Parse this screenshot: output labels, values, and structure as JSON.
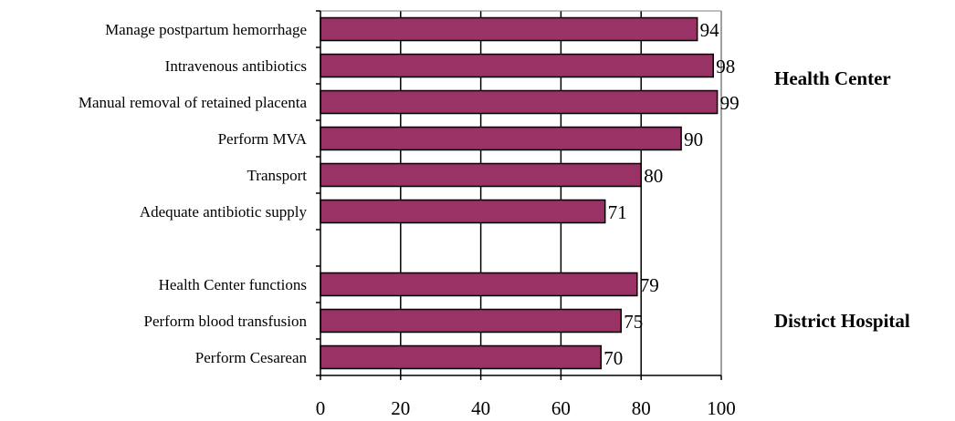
{
  "chart_data": {
    "type": "bar",
    "orientation": "horizontal",
    "categories": [
      "Manage postpartum hemorrhage",
      "Intravenous antibiotics",
      "Manual removal of retained placenta",
      "Perform MVA",
      "Transport",
      "Adequate antibiotic supply",
      "",
      "Health Center functions",
      "Perform blood transfusion",
      "Perform Cesarean"
    ],
    "values": [
      94,
      98,
      99,
      90,
      80,
      71,
      null,
      79,
      75,
      70
    ],
    "data_labels": [
      "94",
      "98",
      "99",
      "90",
      "80",
      "71",
      "",
      "79",
      "75",
      "70"
    ],
    "xlim": [
      0,
      100
    ],
    "x_ticks": [
      0,
      20,
      40,
      60,
      80,
      100
    ],
    "x_tick_labels": [
      "0",
      "20",
      "40",
      "60",
      "80",
      "100"
    ],
    "groups": [
      {
        "label": "Health Center",
        "categories": [
          "Manage postpartum hemorrhage",
          "Intravenous antibiotics",
          "Manual removal of retained placenta",
          "Perform MVA",
          "Transport",
          "Adequate antibiotic supply"
        ]
      },
      {
        "label": "District Hospital",
        "categories": [
          "Health Center functions",
          "Perform blood transfusion",
          "Perform Cesarean"
        ]
      }
    ],
    "grid": "vertical",
    "legend": "none",
    "title": "",
    "xlabel": "",
    "ylabel": ""
  },
  "colors": {
    "bar_fill": "#993366",
    "bar_stroke": "#000000",
    "gridline": "#000000",
    "axis": "#000000",
    "plot_border": "#808080"
  }
}
